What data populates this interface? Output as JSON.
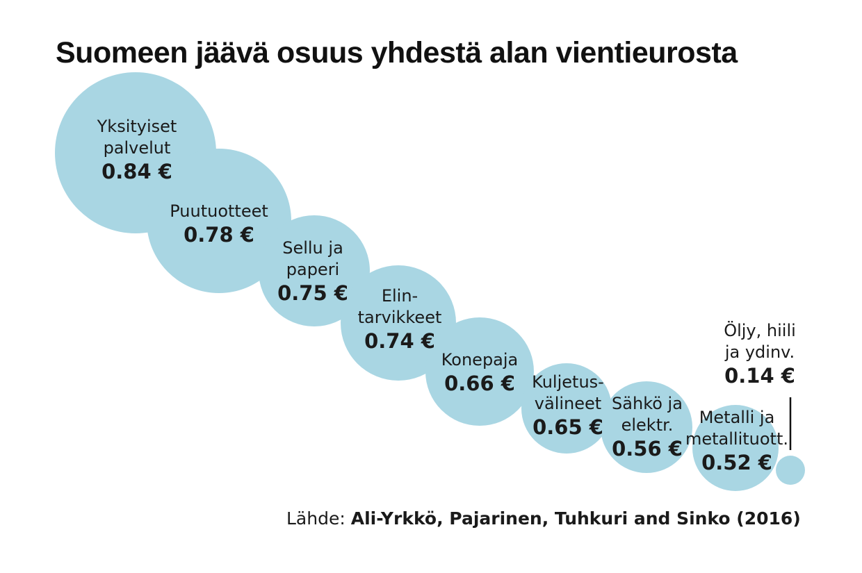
{
  "chart_data": {
    "type": "bubble",
    "title": "Suomeen jäävä osuus yhdestä alan vientieurosta",
    "categories": [
      "Yksityiset palvelut",
      "Puutuotteet",
      "Sellu ja paperi",
      "Elintarvikkeet",
      "Konepaja",
      "Kuljetusvälineet",
      "Sähkö ja elektr.",
      "Metalli ja metallituott.",
      "Öljy, hiili ja ydinv."
    ],
    "series": [
      {
        "values": [
          0.84,
          0.78,
          0.75,
          0.74,
          0.66,
          0.65,
          0.56,
          0.52,
          0.14
        ]
      }
    ],
    "unit": "€",
    "bubbles": [
      {
        "label_lines": [
          "Yksityiset",
          "palvelut"
        ],
        "value": 0.84,
        "value_text": "0.84 €"
      },
      {
        "label_lines": [
          "Puutuotteet"
        ],
        "value": 0.78,
        "value_text": "0.78 €"
      },
      {
        "label_lines": [
          "Sellu ja",
          "paperi"
        ],
        "value": 0.75,
        "value_text": "0.75 €"
      },
      {
        "label_lines": [
          "Elin-",
          "tarvikkeet"
        ],
        "value": 0.74,
        "value_text": "0.74 €"
      },
      {
        "label_lines": [
          "Konepaja"
        ],
        "value": 0.66,
        "value_text": "0.66 €"
      },
      {
        "label_lines": [
          "Kuljetus-",
          "välineet"
        ],
        "value": 0.65,
        "value_text": "0.65 €"
      },
      {
        "label_lines": [
          "Sähkö ja",
          "elektr."
        ],
        "value": 0.56,
        "value_text": "0.56 €"
      },
      {
        "label_lines": [
          "Metalli ja",
          "metallituott."
        ],
        "value": 0.52,
        "value_text": "0.52 €"
      },
      {
        "label_lines": [
          "Öljy, hiili",
          "ja ydinv."
        ],
        "value": 0.14,
        "value_text": "0.14 €"
      }
    ]
  },
  "source": {
    "prefix": "Lähde: ",
    "authors": "Ali-Yrkkö, Pajarinen, Tuhkuri and Sinko (2016)"
  },
  "colors": {
    "bubble": "#a9d6e3",
    "text": "#1a1a1a",
    "leader_line": "#111111"
  }
}
